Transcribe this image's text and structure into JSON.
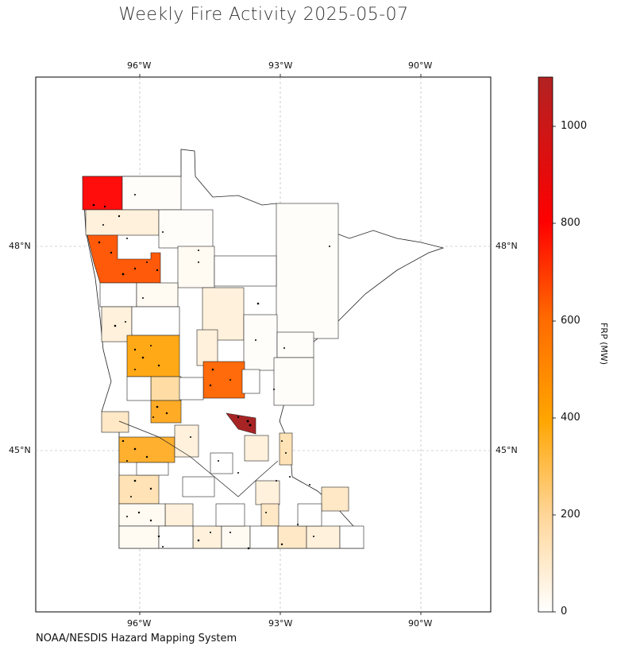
{
  "title": "Weekly Fire Activity 2025-05-07",
  "source": "NOAA/NESDIS Hazard Mapping System",
  "longitude_labels": [
    "96°W",
    "93°W",
    "90°W"
  ],
  "latitude_labels": [
    "48°N",
    "45°N"
  ],
  "colorbar": {
    "label": "FRP (MW)",
    "ticks": [
      "0",
      "200",
      "400",
      "600",
      "800",
      "1000"
    ],
    "range": [
      0,
      1100
    ],
    "colors": [
      "#ffffff",
      "#ffd699",
      "#ffa500",
      "#ff6a00",
      "#ff0000",
      "#b22222"
    ]
  },
  "map": {
    "region": "Minnesota",
    "lon_range": [
      -98.3,
      -88.55
    ],
    "lat_range": [
      43.0,
      50.0
    ],
    "grid": true,
    "fire_detections": "black dots"
  }
}
